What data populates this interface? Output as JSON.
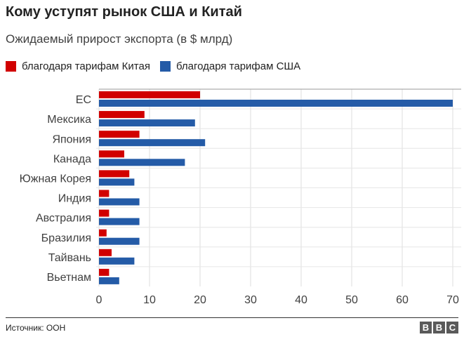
{
  "title": "Кому уступят рынок США и Китай",
  "subtitle": "Ожидаемый прирост экспорта (в $ млрд)",
  "source": "Источник: ООН",
  "logo": "BBC",
  "chart_data": {
    "type": "bar",
    "orientation": "horizontal",
    "categories": [
      "ЕС",
      "Мексика",
      "Япония",
      "Канада",
      "Южная Корея",
      "Индия",
      "Австралия",
      "Бразилия",
      "Тайвань",
      "Вьетнам"
    ],
    "series": [
      {
        "name": "благодаря тарифам Китая",
        "color": "#d10000",
        "values": [
          20,
          9,
          8,
          5,
          6,
          2,
          2,
          1.5,
          2.5,
          2
        ]
      },
      {
        "name": "благодаря тарифам США",
        "color": "#245ba7",
        "values": [
          70,
          19,
          21,
          17,
          7,
          8,
          8,
          8,
          7,
          4
        ]
      }
    ],
    "xlim": [
      0,
      70
    ],
    "xticks": [
      0,
      10,
      20,
      30,
      40,
      50,
      60,
      70
    ],
    "grid": true,
    "legend": "top-left"
  }
}
